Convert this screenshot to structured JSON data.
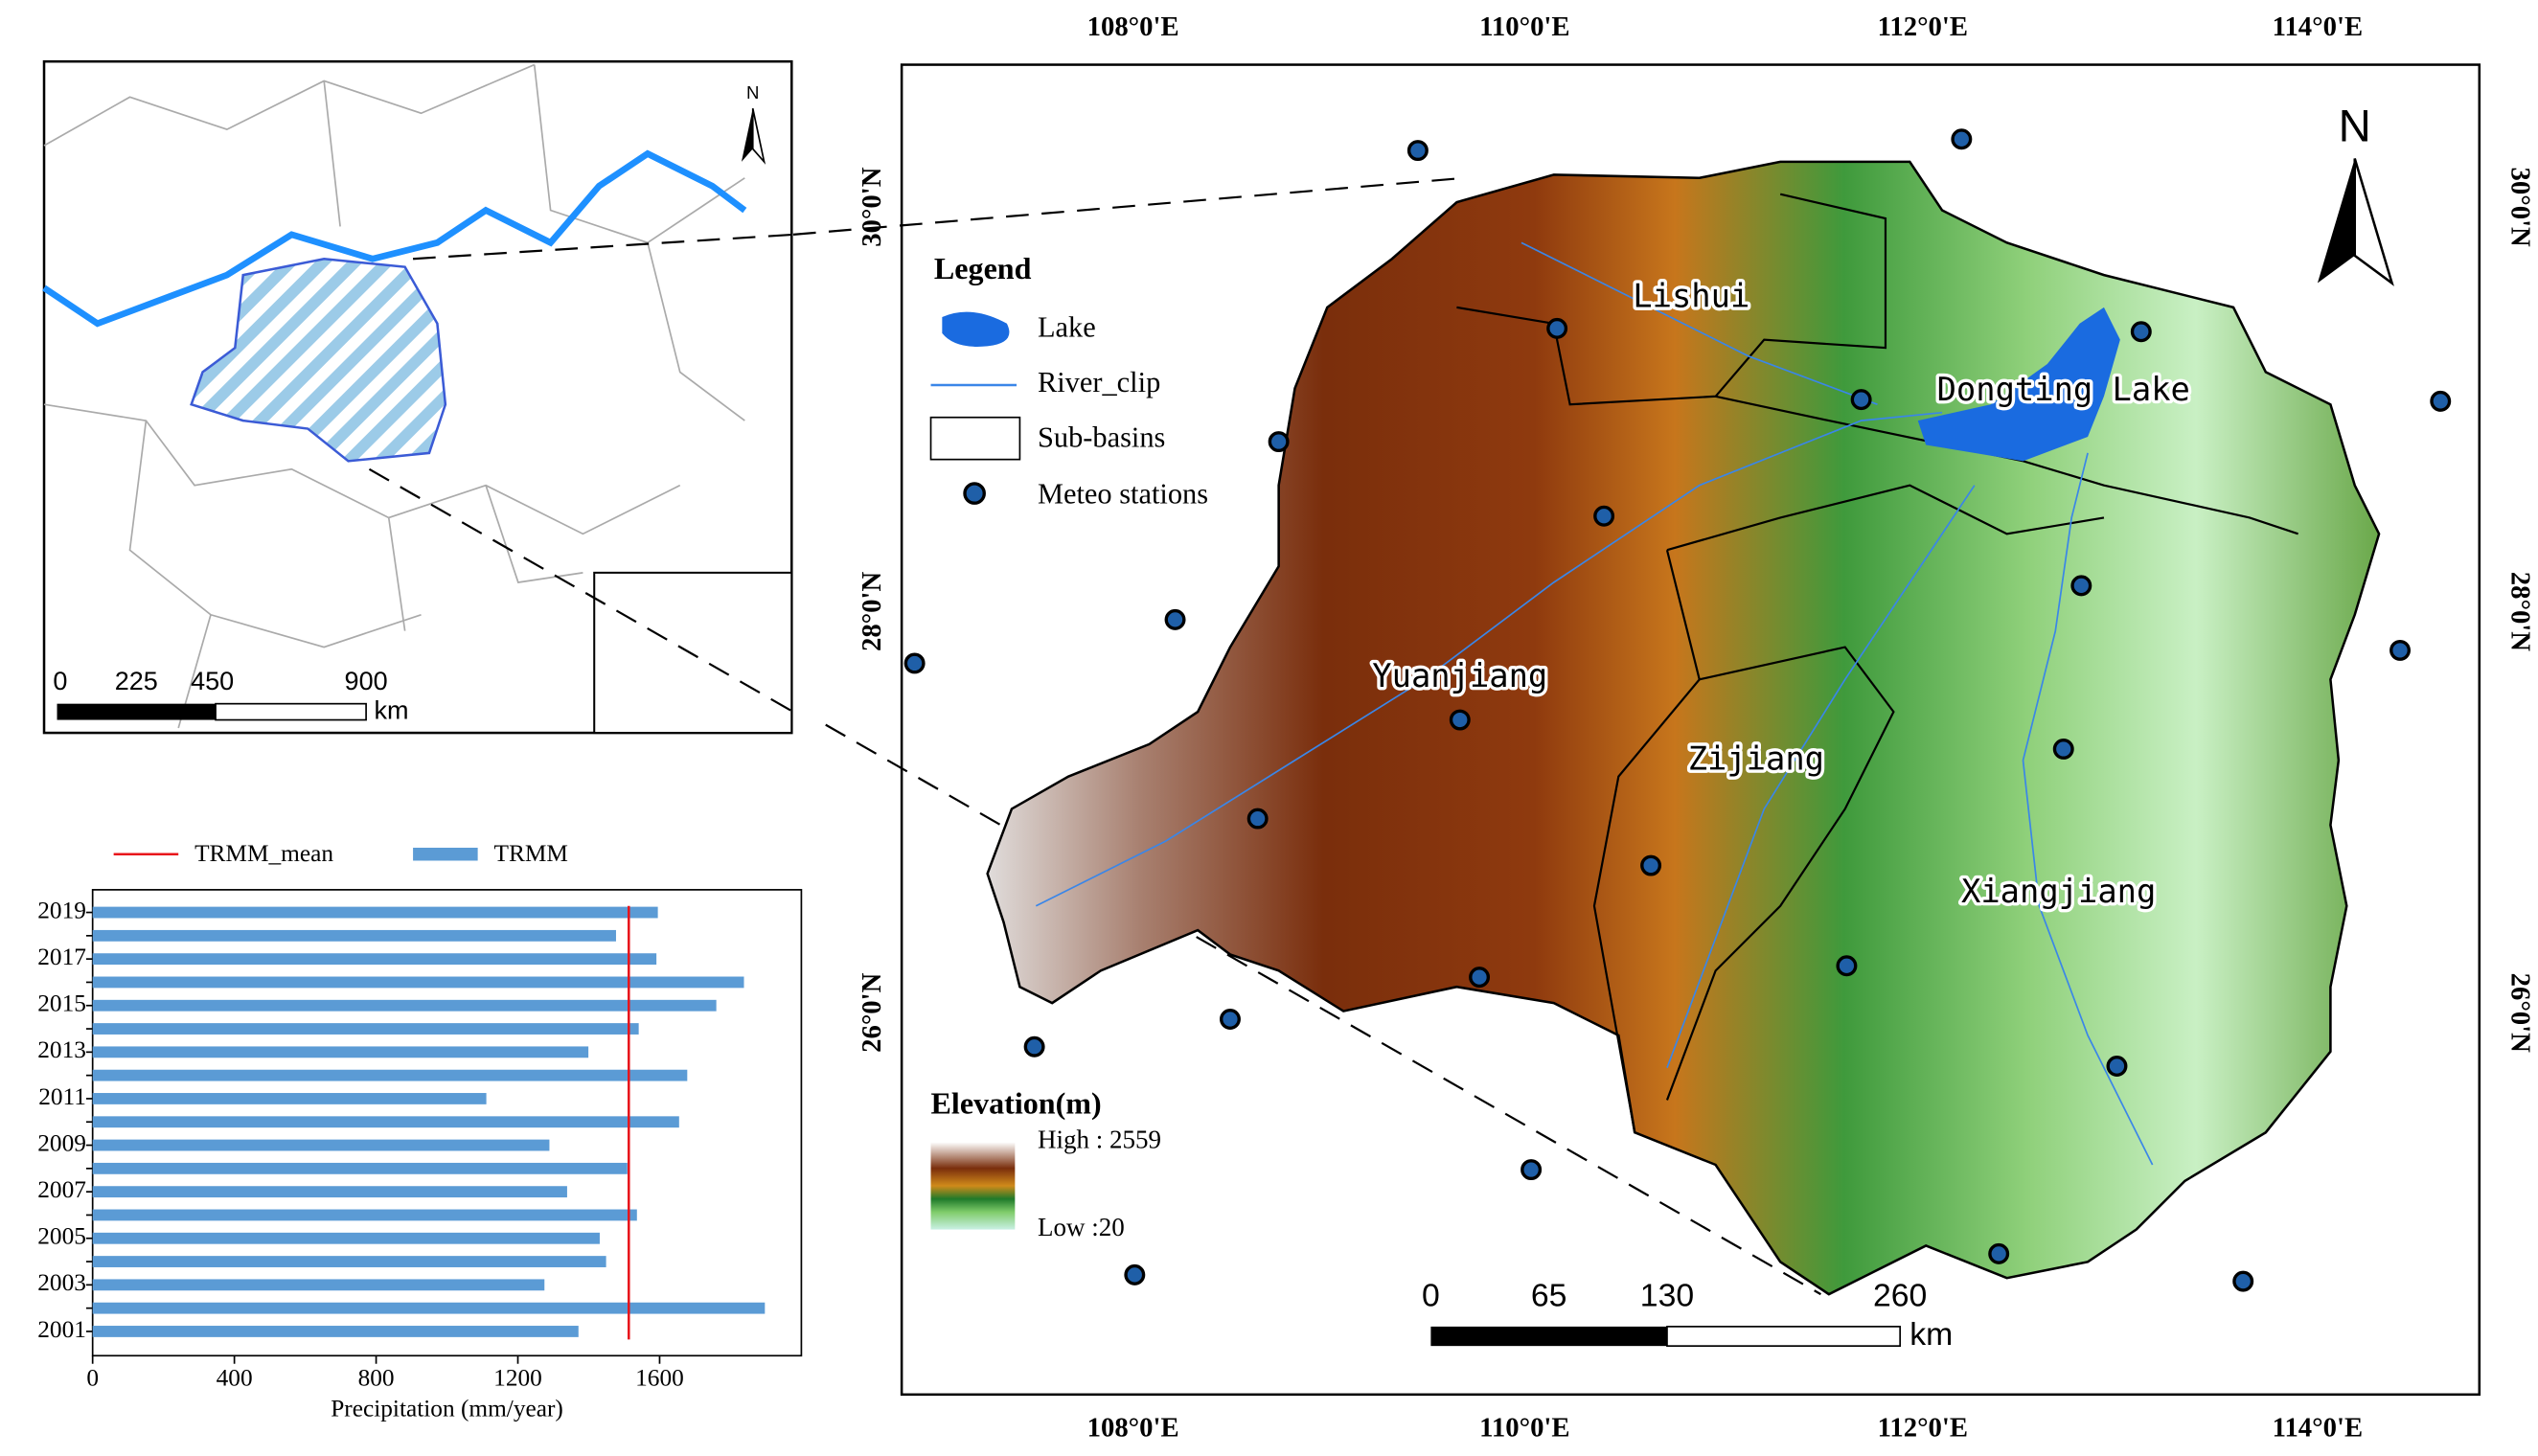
{
  "map": {
    "lon_labels": [
      "108°0'E",
      "110°0'E",
      "112°0'E",
      "114°0'E"
    ],
    "lat_labels": [
      "30°0'N",
      "28°0'N",
      "26°0'N"
    ],
    "north": "N",
    "legend": {
      "title": "Legend",
      "items": [
        "Lake",
        "River_clip",
        "Sub-basins",
        "Meteo stations"
      ]
    },
    "basins": [
      "Lishui",
      "Dongting Lake",
      "Yuanjiang",
      "Zijiang",
      "Xiangjiang"
    ],
    "elevation": {
      "title": "Elevation(m)",
      "high": "High : 2559",
      "low": "Low :20"
    },
    "scale_bar": {
      "labels": [
        "0",
        "65",
        "130",
        "260"
      ],
      "unit": "km"
    }
  },
  "inset": {
    "north": "N",
    "scale_bar": {
      "labels": [
        "0",
        "225",
        "450",
        "900"
      ],
      "unit": "km"
    }
  },
  "chart_data": {
    "type": "bar",
    "orientation": "horizontal",
    "x_label": "Precipitation (mm/year)",
    "categories": [
      "2001",
      null,
      "2003",
      null,
      "2005",
      null,
      "2007",
      null,
      "2009",
      null,
      "2011",
      null,
      "2013",
      null,
      "2015",
      null,
      "2017",
      null,
      "2019"
    ],
    "series": [
      {
        "name": "TRMM",
        "color": "#5b9bd5",
        "values": [
          1371,
          1897,
          1275,
          1449,
          1431,
          1536,
          1339,
          1509,
          1289,
          1655,
          1111,
          1678,
          1399,
          1541,
          1760,
          1838,
          1591,
          1477,
          1595
        ]
      }
    ],
    "mean_line": {
      "name": "TRMM_mean",
      "color": "#e8141b",
      "value": 1513
    },
    "xlim": [
      0,
      2000
    ],
    "xticks": [
      0,
      400,
      800,
      1200,
      1600
    ]
  }
}
